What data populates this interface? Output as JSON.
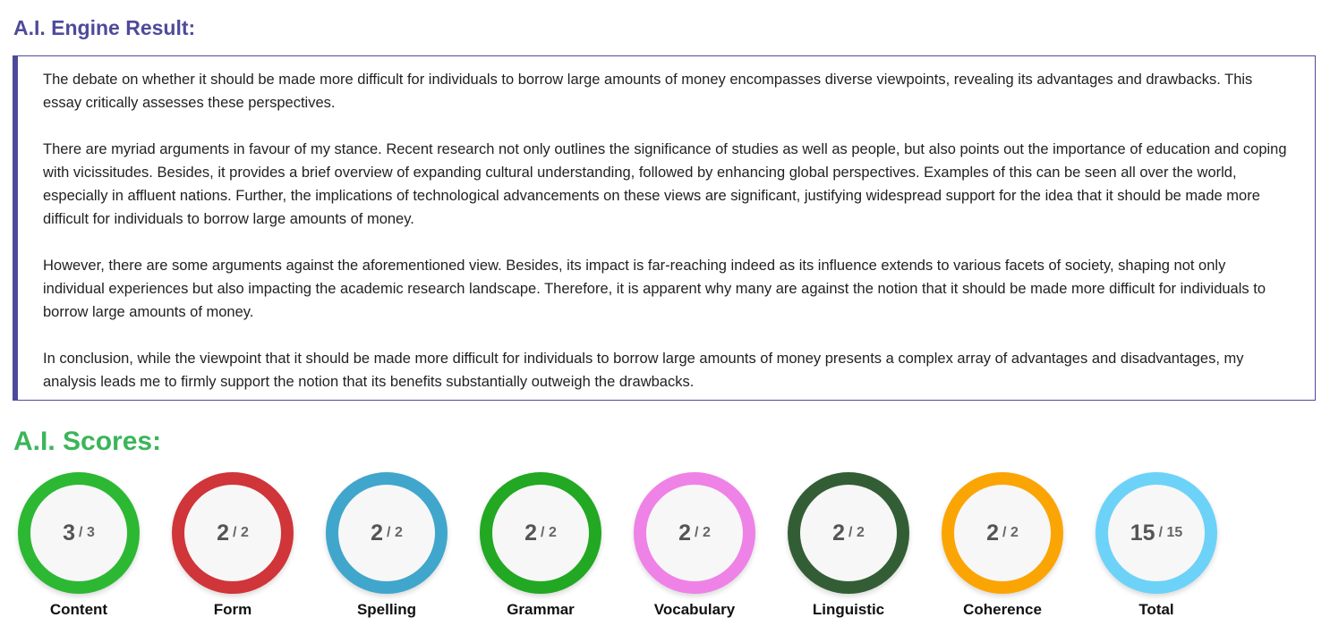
{
  "result": {
    "title": "A.I. Engine Result:",
    "paragraphs": [
      "The debate on whether it should be made more difficult for individuals to borrow large amounts of money encompasses diverse viewpoints, revealing its advantages and drawbacks. This essay critically assesses these perspectives.",
      "There are myriad arguments in favour of my stance. Recent research not only outlines the significance of studies as well as people, but also points out the importance of education and coping with vicissitudes. Besides, it provides a brief overview of expanding cultural understanding, followed by enhancing global perspectives. Examples of this can be seen all over the world, especially in affluent nations. Further, the implications of technological advancements on these views are significant, justifying widespread support for the idea that it should be made more difficult for individuals to borrow large amounts of money.",
      "However, there are some arguments against the aforementioned view. Besides, its impact is far-reaching indeed as its influence extends to various facets of society, shaping not only individual experiences but also impacting the academic research landscape. Therefore, it is apparent why many are against the notion that it should be made more difficult for individuals to borrow large amounts of money.",
      "In conclusion, while the viewpoint that it should be made more difficult for individuals to borrow large amounts of money presents a complex array of advantages and disadvantages, my analysis leads me to firmly support the notion that its benefits substantially outweigh the drawbacks."
    ]
  },
  "scores": {
    "title": "A.I. Scores:",
    "items": [
      {
        "label": "Content",
        "value": "3",
        "max": "/ 3",
        "color": "#2db834"
      },
      {
        "label": "Form",
        "value": "2",
        "max": "/ 2",
        "color": "#d03539"
      },
      {
        "label": "Spelling",
        "value": "2",
        "max": "/ 2",
        "color": "#40a6cc"
      },
      {
        "label": "Grammar",
        "value": "2",
        "max": "/ 2",
        "color": "#22a822"
      },
      {
        "label": "Vocabulary",
        "value": "2",
        "max": "/ 2",
        "color": "#ee82e6"
      },
      {
        "label": "Linguistic",
        "value": "2",
        "max": "/ 2",
        "color": "#335e35"
      },
      {
        "label": "Coherence",
        "value": "2",
        "max": "/ 2",
        "color": "#fba505"
      },
      {
        "label": "Total",
        "value": "15",
        "max": "/ 15",
        "color": "#6dd2f8"
      }
    ]
  }
}
